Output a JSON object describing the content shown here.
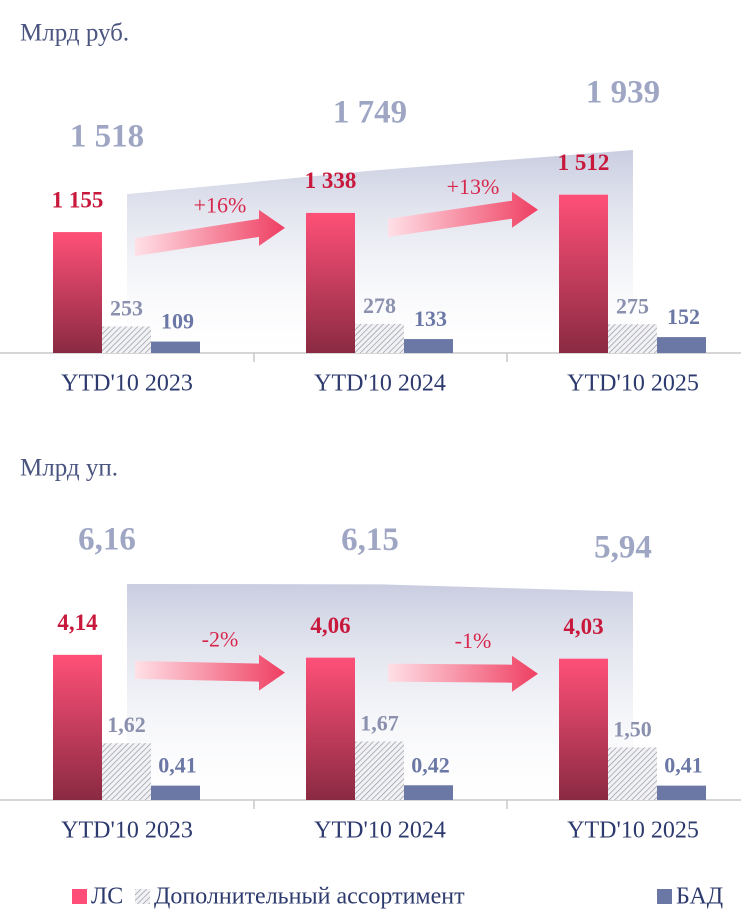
{
  "chart_data": [
    {
      "type": "bar",
      "title": "Млрд руб.",
      "categories": [
        "YTD'10 2023",
        "YTD'10 2024",
        "YTD'10 2025"
      ],
      "series": [
        {
          "name": "ЛС",
          "color": "#ff4f78",
          "values": [
            1155,
            1338,
            1512
          ],
          "value_labels": [
            "1 155",
            "1 338",
            "1 512"
          ]
        },
        {
          "name": "Дополнительный ассортимент",
          "color": "#9aa0b4",
          "values": [
            253,
            278,
            275
          ]
        },
        {
          "name": "БАД",
          "color": "#6b78a6",
          "values": [
            109,
            133,
            152
          ]
        }
      ],
      "totals": [
        1518,
        1749,
        1939
      ],
      "total_labels": [
        "1 518",
        "1 749",
        "1 939"
      ],
      "annotations": [
        "+16%",
        "+13%"
      ]
    },
    {
      "type": "bar",
      "title": "Млрд уп.",
      "categories": [
        "YTD'10 2023",
        "YTD'10 2024",
        "YTD'10 2025"
      ],
      "series": [
        {
          "name": "ЛС",
          "color": "#ff4f78",
          "values": [
            4.14,
            4.06,
            4.03
          ],
          "value_labels": [
            "4,14",
            "4,06",
            "4,03"
          ]
        },
        {
          "name": "Дополнительный ассортимент",
          "color": "#9aa0b4",
          "values": [
            1.62,
            1.67,
            1.5
          ],
          "value_labels": [
            "1,62",
            "1,67",
            "1,50"
          ]
        },
        {
          "name": "БАД",
          "color": "#6b78a6",
          "values": [
            0.41,
            0.42,
            0.41
          ],
          "value_labels": [
            "0,41",
            "0,42",
            "0,41"
          ]
        }
      ],
      "totals": [
        6.16,
        6.15,
        5.94
      ],
      "total_labels": [
        "6,16",
        "6,15",
        "5,94"
      ],
      "annotations": [
        "-2%",
        "-1%"
      ]
    }
  ]
}
